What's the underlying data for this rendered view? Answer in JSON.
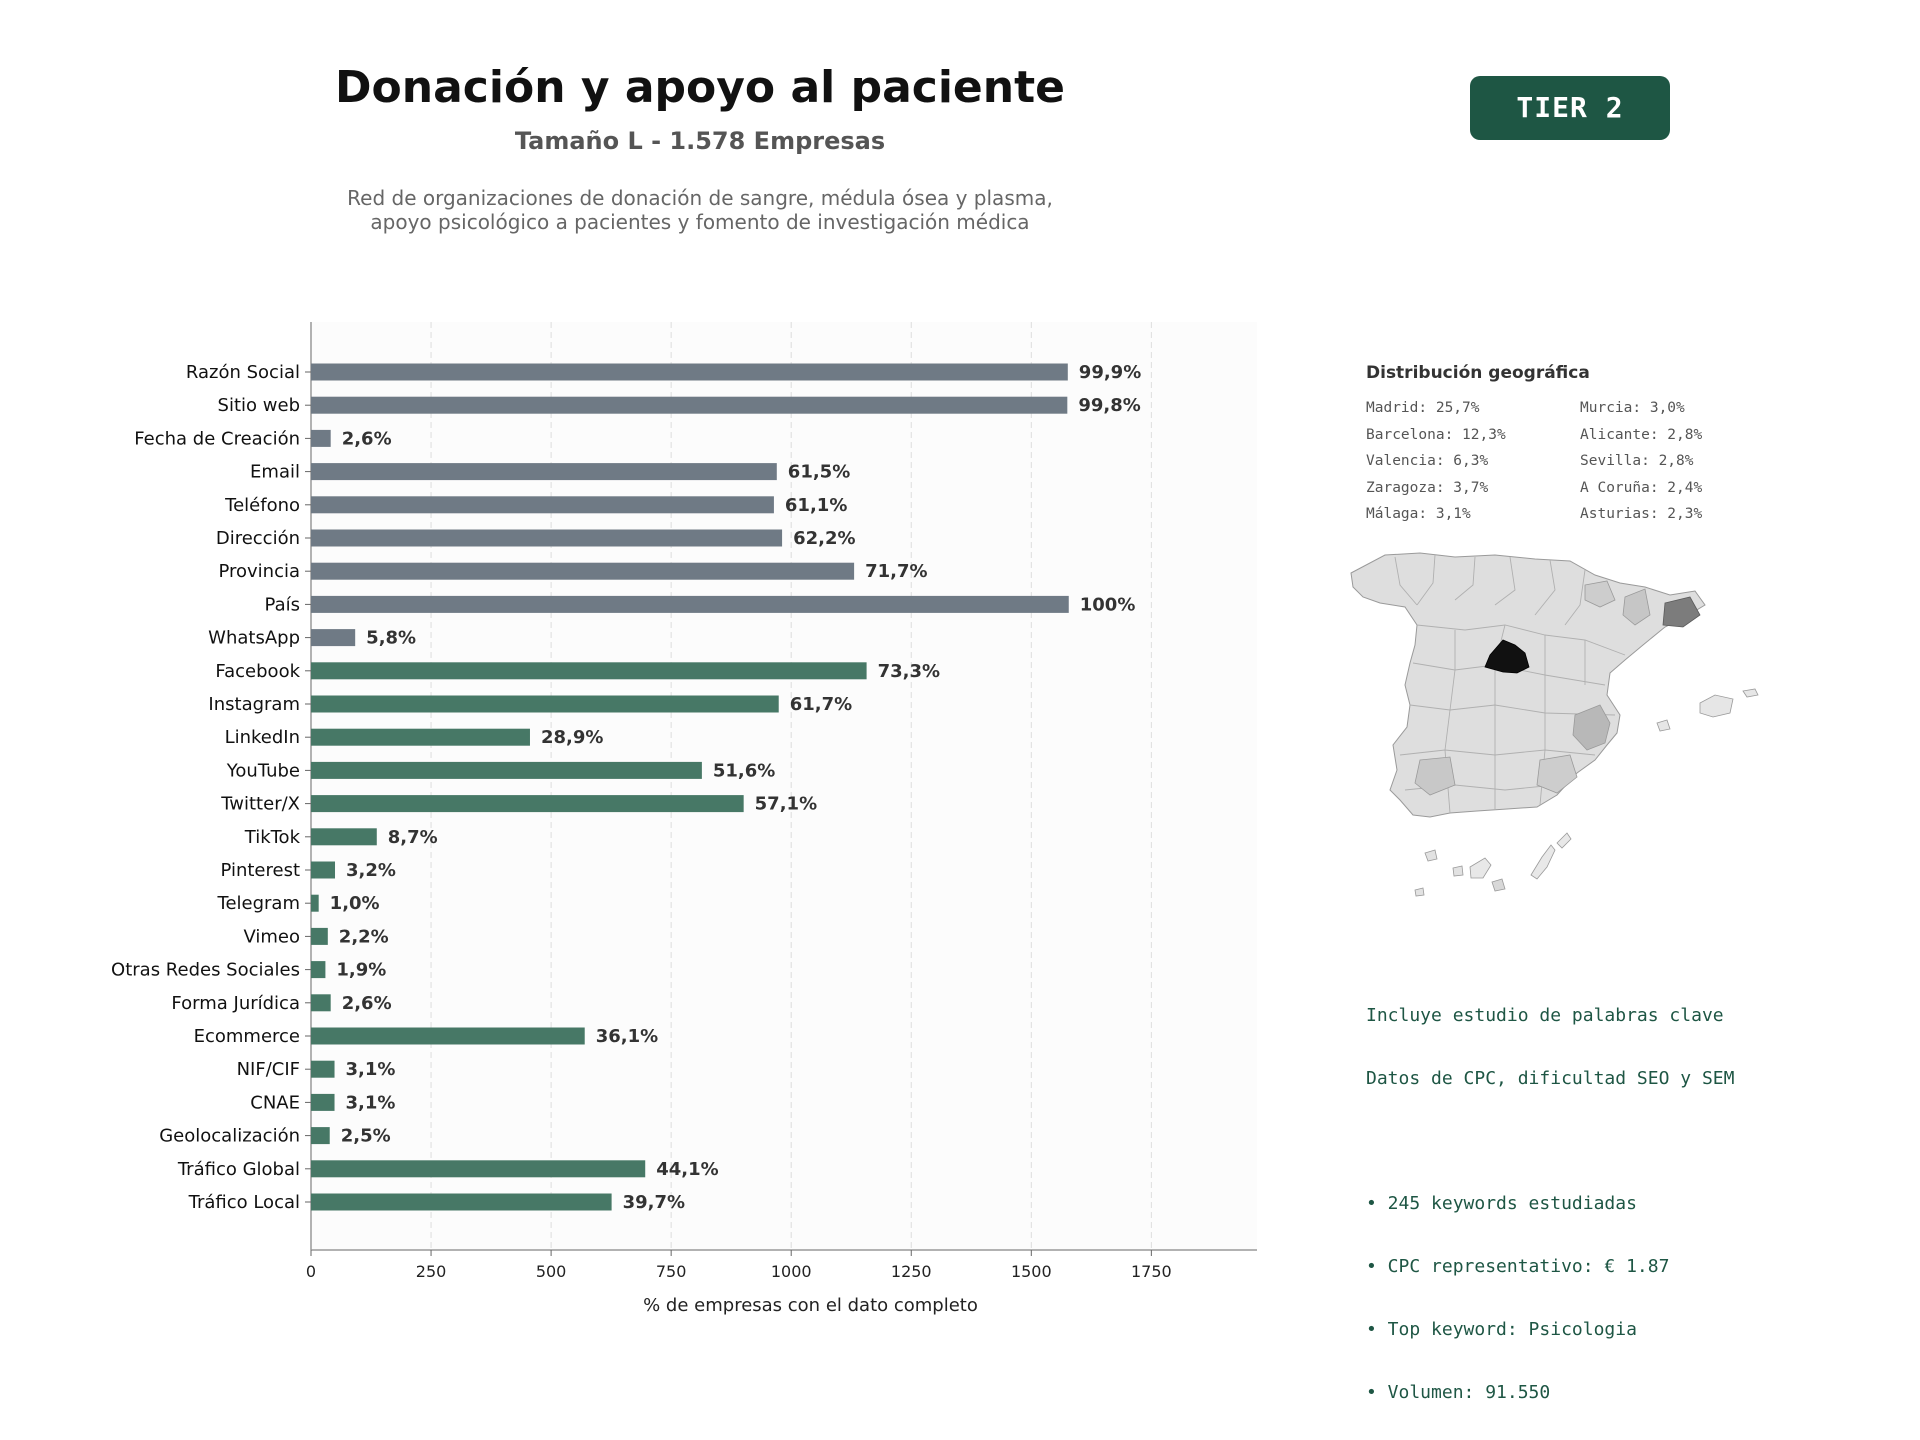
{
  "header": {
    "title": "Donación y apoyo al paciente",
    "subtitle": "Tamaño L - 1.578 Empresas",
    "description_line1": "Red de organizaciones de donación de sangre, médula ósea y plasma,",
    "description_line2": "apoyo psicológico a pacientes y fomento de investigación médica",
    "tier_badge": "TIER 2"
  },
  "colors": {
    "gray_bar": "#6f7a85",
    "green_bar": "#477866",
    "tier_bg": "#1e5644",
    "keyword_text": "#1e5644"
  },
  "chart_data": {
    "type": "bar",
    "orientation": "horizontal",
    "xlabel": "% de empresas con el dato completo",
    "ylabel": "",
    "xlim": [
      0,
      1970
    ],
    "xticks": [
      0,
      250,
      500,
      750,
      1000,
      1250,
      1500,
      1750
    ],
    "grid": "vertical dashed",
    "categories": [
      "Razón Social",
      "Sitio web",
      "Fecha de Creación",
      "Email",
      "Teléfono",
      "Dirección",
      "Provincia",
      "País",
      "WhatsApp",
      "Facebook",
      "Instagram",
      "LinkedIn",
      "YouTube",
      "Twitter/X",
      "TikTok",
      "Pinterest",
      "Telegram",
      "Vimeo",
      "Otras Redes Sociales",
      "Forma Jurídica",
      "Ecommerce",
      "NIF/CIF",
      "CNAE",
      "Geolocalización",
      "Tráfico Global",
      "Tráfico Local"
    ],
    "values": [
      1576,
      1575,
      41,
      970,
      964,
      981,
      1131,
      1578,
      92,
      1157,
      974,
      456,
      814,
      901,
      137,
      50,
      16,
      35,
      30,
      41,
      570,
      49,
      49,
      39,
      696,
      626
    ],
    "labels": [
      "99,9%",
      "99,8%",
      "2,6%",
      "61,5%",
      "61,1%",
      "62,2%",
      "71,7%",
      "100%",
      "5,8%",
      "73,3%",
      "61,7%",
      "28,9%",
      "51,6%",
      "57,1%",
      "8,7%",
      "3,2%",
      "1,0%",
      "2,2%",
      "1,9%",
      "2,6%",
      "36,1%",
      "3,1%",
      "3,1%",
      "2,5%",
      "44,1%",
      "39,7%"
    ],
    "bar_groups": [
      "gray",
      "gray",
      "gray",
      "gray",
      "gray",
      "gray",
      "gray",
      "gray",
      "gray",
      "green",
      "green",
      "green",
      "green",
      "green",
      "green",
      "green",
      "green",
      "green",
      "green",
      "green",
      "green",
      "green",
      "green",
      "green",
      "green",
      "green"
    ]
  },
  "geo": {
    "title": "Distribución geográfica",
    "col1": [
      "Madrid: 25,7%",
      "Barcelona: 12,3%",
      "Valencia: 6,3%",
      "Zaragoza: 3,7%",
      "Málaga: 3,1%"
    ],
    "col2": [
      "Murcia: 3,0%",
      "Alicante: 2,8%",
      "Sevilla: 2,8%",
      "A Coruña: 2,4%",
      "Asturias: 2,3%"
    ]
  },
  "keywords": {
    "line1": "Incluye estudio de palabras clave",
    "line2": "Datos de CPC, dificultad SEO y SEM",
    "bullet1": "• 245 keywords estudiadas",
    "bullet2": "• CPC representativo: € 1.87",
    "bullet3": "• Top keyword: Psicologia",
    "bullet4": "• Volumen: 91.550"
  }
}
